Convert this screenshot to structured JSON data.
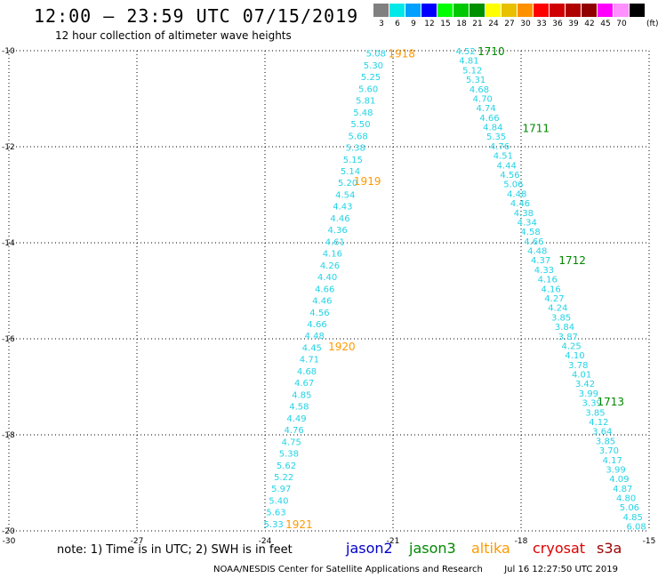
{
  "header": {
    "title": "12:00 – 23:59 UTC 07/15/2019",
    "subtitle": "12 hour collection of altimeter wave heights"
  },
  "color_scale": {
    "unit": "(ft)",
    "entries": [
      {
        "label": "3",
        "color": "#808080"
      },
      {
        "label": "6",
        "color": "#00e8e8"
      },
      {
        "label": "9",
        "color": "#00a0ff"
      },
      {
        "label": "12",
        "color": "#0000ff"
      },
      {
        "label": "15",
        "color": "#00ff00"
      },
      {
        "label": "18",
        "color": "#00c800"
      },
      {
        "label": "21",
        "color": "#009000"
      },
      {
        "label": "24",
        "color": "#ffff00"
      },
      {
        "label": "27",
        "color": "#e8c000"
      },
      {
        "label": "30",
        "color": "#ff9000"
      },
      {
        "label": "33",
        "color": "#ff0000"
      },
      {
        "label": "36",
        "color": "#d00000"
      },
      {
        "label": "39",
        "color": "#b00000"
      },
      {
        "label": "42",
        "color": "#900000"
      },
      {
        "label": "45",
        "color": "#ff00ff"
      },
      {
        "label": "70",
        "color": "#ff90ff"
      },
      {
        "label": "",
        "color": "#000000"
      }
    ]
  },
  "map": {
    "lon_ticks": [
      "-30",
      "-27",
      "-24",
      "-21",
      "-18",
      "-15"
    ],
    "lat_ticks": [
      "-10",
      "-12",
      "-14",
      "-16",
      "-18",
      "-20"
    ],
    "lon_range": [
      -30,
      -15
    ],
    "lat_range": [
      -20,
      -10
    ],
    "grid": "dotted",
    "value_color": "#22d3e6"
  },
  "passes": [
    {
      "label": "1918",
      "color": "#ff9900",
      "lon": -20.8,
      "lat": -10.05
    },
    {
      "label": "1919",
      "color": "#ff9900",
      "lon": -21.6,
      "lat": -12.7
    },
    {
      "label": "1920",
      "color": "#ff9900",
      "lon": -22.2,
      "lat": -16.15
    },
    {
      "label": "1921",
      "color": "#ff9900",
      "lon": -23.2,
      "lat": -19.85
    },
    {
      "label": "1710",
      "color": "#008800",
      "lon": -18.7,
      "lat": -10.0
    },
    {
      "label": "1711",
      "color": "#008800",
      "lon": -17.65,
      "lat": -11.6
    },
    {
      "label": "1712",
      "color": "#008800",
      "lon": -16.8,
      "lat": -14.35
    },
    {
      "label": "1713",
      "color": "#008800",
      "lon": -15.9,
      "lat": -17.3
    }
  ],
  "tracks": [
    {
      "name": "track-west",
      "start": {
        "lon": -21.4,
        "lat": -10.05
      },
      "end": {
        "lon": -23.8,
        "lat": -19.85
      },
      "values": [
        "5.08",
        "5.30",
        "5.25",
        "5.60",
        "5.81",
        "5.48",
        "5.50",
        "5.68",
        "5.38",
        "5.15",
        "5.14",
        "5.20",
        "4.54",
        "4.43",
        "4.46",
        "4.36",
        "4.61",
        "4.16",
        "4.26",
        "4.40",
        "4.66",
        "4.46",
        "4.56",
        "4.66",
        "4.48",
        "4.45",
        "4.71",
        "4.68",
        "4.67",
        "4.85",
        "4.58",
        "4.49",
        "4.76",
        "4.75",
        "5.38",
        "5.62",
        "5.22",
        "5.97",
        "5.40",
        "5.63",
        "5.33"
      ]
    },
    {
      "name": "track-east",
      "start": {
        "lon": -19.3,
        "lat": -10.0
      },
      "end": {
        "lon": -15.3,
        "lat": -19.9
      },
      "values": [
        "4.52",
        "4.81",
        "5.12",
        "5.31",
        "4.68",
        "4.70",
        "4.74",
        "4.66",
        "4.84",
        "5.35",
        "4.76",
        "4.51",
        "4.44",
        "4.56",
        "5.06",
        "4.48",
        "4.46",
        "4.38",
        "4.34",
        "4.58",
        "4.66",
        "4.48",
        "4.37",
        "4.33",
        "4.16",
        "4.16",
        "4.27",
        "4.24",
        "3.85",
        "3.84",
        "3.87",
        "4.25",
        "4.10",
        "3.78",
        "4.01",
        "3.42",
        "3.99",
        "3.39",
        "3.85",
        "4.12",
        "3.64",
        "3.85",
        "3.70",
        "4.17",
        "3.99",
        "4.09",
        "4.87",
        "4.80",
        "5.06",
        "4.85",
        "6.08"
      ]
    }
  ],
  "legend": {
    "note": "note: 1) Time is in UTC; 2) SWH is in feet",
    "satellites": [
      {
        "name": "jason2",
        "color": "#0000cc"
      },
      {
        "name": "jason3",
        "color": "#008800"
      },
      {
        "name": "altika",
        "color": "#ff9900"
      },
      {
        "name": "cryosat",
        "color": "#dd0000"
      },
      {
        "name": "s3a",
        "color": "#990000"
      }
    ]
  },
  "footer": {
    "org": "NOAA/NESDIS Center for Satellite Applications and Research",
    "timestamp": "Jul 16 12:27:50 UTC 2019"
  }
}
